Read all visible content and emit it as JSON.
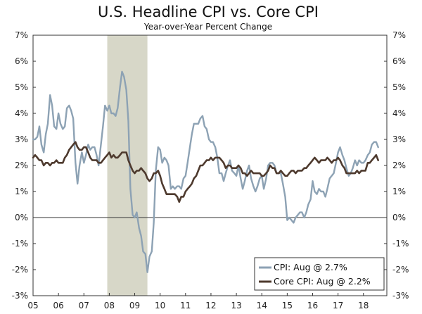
{
  "chart_data": {
    "type": "line",
    "title": "U.S. Headline CPI vs. Core CPI",
    "subtitle": "Year-over-Year Percent Change",
    "xlabel": "",
    "ylabel": "",
    "xlim": [
      2005.0,
      2018.92
    ],
    "ylim": [
      -3,
      7
    ],
    "y_ticks": [
      -3,
      -2,
      -1,
      0,
      1,
      2,
      3,
      4,
      5,
      6,
      7
    ],
    "y_tick_labels": [
      "-3%",
      "-2%",
      "-1%",
      "0%",
      "1%",
      "2%",
      "3%",
      "4%",
      "5%",
      "6%",
      "7%"
    ],
    "x_ticks": [
      2005,
      2006,
      2007,
      2008,
      2009,
      2010,
      2011,
      2012,
      2013,
      2014,
      2015,
      2016,
      2017,
      2018
    ],
    "x_tick_labels": [
      "05",
      "06",
      "07",
      "08",
      "09",
      "10",
      "11",
      "12",
      "13",
      "14",
      "15",
      "16",
      "17",
      "18"
    ],
    "recession": {
      "start": 2007.92,
      "end": 2009.5,
      "color": "#d7d7c8"
    },
    "legend_position": "bottom-right",
    "series": [
      {
        "name": "CPI: Aug @ 2.7%",
        "color": "#8da2b4",
        "x": [
          2005.0,
          2005.08,
          2005.17,
          2005.25,
          2005.33,
          2005.42,
          2005.5,
          2005.58,
          2005.67,
          2005.75,
          2005.83,
          2005.92,
          2006.0,
          2006.08,
          2006.17,
          2006.25,
          2006.33,
          2006.42,
          2006.5,
          2006.58,
          2006.67,
          2006.75,
          2006.83,
          2006.92,
          2007.0,
          2007.08,
          2007.17,
          2007.25,
          2007.33,
          2007.42,
          2007.5,
          2007.58,
          2007.67,
          2007.75,
          2007.83,
          2007.92,
          2008.0,
          2008.08,
          2008.17,
          2008.25,
          2008.33,
          2008.42,
          2008.5,
          2008.58,
          2008.67,
          2008.75,
          2008.83,
          2008.92,
          2009.0,
          2009.08,
          2009.17,
          2009.25,
          2009.33,
          2009.42,
          2009.5,
          2009.58,
          2009.67,
          2009.75,
          2009.83,
          2009.92,
          2010.0,
          2010.08,
          2010.17,
          2010.25,
          2010.33,
          2010.42,
          2010.5,
          2010.58,
          2010.67,
          2010.75,
          2010.83,
          2010.92,
          2011.0,
          2011.08,
          2011.17,
          2011.25,
          2011.33,
          2011.42,
          2011.5,
          2011.58,
          2011.67,
          2011.75,
          2011.83,
          2011.92,
          2012.0,
          2012.08,
          2012.17,
          2012.25,
          2012.33,
          2012.42,
          2012.5,
          2012.58,
          2012.67,
          2012.75,
          2012.83,
          2012.92,
          2013.0,
          2013.08,
          2013.17,
          2013.25,
          2013.33,
          2013.42,
          2013.5,
          2013.58,
          2013.67,
          2013.75,
          2013.83,
          2013.92,
          2014.0,
          2014.08,
          2014.17,
          2014.25,
          2014.33,
          2014.42,
          2014.5,
          2014.58,
          2014.67,
          2014.75,
          2014.83,
          2014.92,
          2015.0,
          2015.08,
          2015.17,
          2015.25,
          2015.33,
          2015.42,
          2015.5,
          2015.58,
          2015.67,
          2015.75,
          2015.83,
          2015.92,
          2016.0,
          2016.08,
          2016.17,
          2016.25,
          2016.33,
          2016.42,
          2016.5,
          2016.58,
          2016.67,
          2016.75,
          2016.83,
          2016.92,
          2017.0,
          2017.08,
          2017.17,
          2017.25,
          2017.33,
          2017.42,
          2017.5,
          2017.58,
          2017.67,
          2017.75,
          2017.83,
          2017.92,
          2018.0,
          2018.08,
          2018.17,
          2018.25,
          2018.33,
          2018.42,
          2018.5,
          2018.58
        ],
        "y": [
          3.0,
          3.0,
          3.1,
          3.5,
          2.8,
          2.5,
          3.2,
          3.6,
          4.7,
          4.3,
          3.5,
          3.4,
          4.0,
          3.6,
          3.4,
          3.5,
          4.2,
          4.3,
          4.1,
          3.8,
          2.1,
          1.3,
          2.0,
          2.5,
          2.1,
          2.4,
          2.8,
          2.6,
          2.7,
          2.7,
          2.4,
          2.0,
          2.8,
          3.5,
          4.3,
          4.1,
          4.3,
          4.0,
          4.0,
          3.9,
          4.2,
          5.0,
          5.6,
          5.4,
          4.9,
          3.7,
          1.1,
          0.1,
          0.0,
          0.2,
          -0.4,
          -0.7,
          -1.3,
          -1.4,
          -2.1,
          -1.5,
          -1.3,
          -0.2,
          1.8,
          2.7,
          2.6,
          2.1,
          2.3,
          2.2,
          2.0,
          1.1,
          1.2,
          1.1,
          1.2,
          1.2,
          1.1,
          1.5,
          1.6,
          2.1,
          2.7,
          3.2,
          3.6,
          3.6,
          3.6,
          3.8,
          3.9,
          3.5,
          3.4,
          3.0,
          2.9,
          2.9,
          2.7,
          2.3,
          1.7,
          1.7,
          1.4,
          1.7,
          2.0,
          2.2,
          1.8,
          1.7,
          1.6,
          2.0,
          1.5,
          1.1,
          1.4,
          1.8,
          2.0,
          1.5,
          1.2,
          1.0,
          1.2,
          1.5,
          1.6,
          1.1,
          1.5,
          2.0,
          2.1,
          2.1,
          2.0,
          1.7,
          1.7,
          1.7,
          1.3,
          0.8,
          -0.1,
          0.0,
          -0.1,
          -0.2,
          0.0,
          0.1,
          0.2,
          0.2,
          0.0,
          0.2,
          0.5,
          0.7,
          1.4,
          1.0,
          0.9,
          1.1,
          1.0,
          1.0,
          0.8,
          1.1,
          1.5,
          1.6,
          1.7,
          2.1,
          2.5,
          2.7,
          2.4,
          2.2,
          1.9,
          1.6,
          1.7,
          1.9,
          2.2,
          2.0,
          2.2,
          2.1,
          2.1,
          2.2,
          2.4,
          2.5,
          2.8,
          2.9,
          2.9,
          2.7
        ]
      },
      {
        "name": "Core CPI: Aug @ 2.2%",
        "color": "#4e3a2e",
        "x": [
          2005.0,
          2005.08,
          2005.17,
          2005.25,
          2005.33,
          2005.42,
          2005.5,
          2005.58,
          2005.67,
          2005.75,
          2005.83,
          2005.92,
          2006.0,
          2006.08,
          2006.17,
          2006.25,
          2006.33,
          2006.42,
          2006.5,
          2006.58,
          2006.67,
          2006.75,
          2006.83,
          2006.92,
          2007.0,
          2007.08,
          2007.17,
          2007.25,
          2007.33,
          2007.42,
          2007.5,
          2007.58,
          2007.67,
          2007.75,
          2007.83,
          2007.92,
          2008.0,
          2008.08,
          2008.17,
          2008.25,
          2008.33,
          2008.42,
          2008.5,
          2008.58,
          2008.67,
          2008.75,
          2008.83,
          2008.92,
          2009.0,
          2009.08,
          2009.17,
          2009.25,
          2009.33,
          2009.42,
          2009.5,
          2009.58,
          2009.67,
          2009.75,
          2009.83,
          2009.92,
          2010.0,
          2010.08,
          2010.17,
          2010.25,
          2010.33,
          2010.42,
          2010.5,
          2010.58,
          2010.67,
          2010.75,
          2010.83,
          2010.92,
          2011.0,
          2011.08,
          2011.17,
          2011.25,
          2011.33,
          2011.42,
          2011.5,
          2011.58,
          2011.67,
          2011.75,
          2011.83,
          2011.92,
          2012.0,
          2012.08,
          2012.17,
          2012.25,
          2012.33,
          2012.42,
          2012.5,
          2012.58,
          2012.67,
          2012.75,
          2012.83,
          2012.92,
          2013.0,
          2013.08,
          2013.17,
          2013.25,
          2013.33,
          2013.42,
          2013.5,
          2013.58,
          2013.67,
          2013.75,
          2013.83,
          2013.92,
          2014.0,
          2014.08,
          2014.17,
          2014.25,
          2014.33,
          2014.42,
          2014.5,
          2014.58,
          2014.67,
          2014.75,
          2014.83,
          2014.92,
          2015.0,
          2015.08,
          2015.17,
          2015.25,
          2015.33,
          2015.42,
          2015.5,
          2015.58,
          2015.67,
          2015.75,
          2015.83,
          2015.92,
          2016.0,
          2016.08,
          2016.17,
          2016.25,
          2016.33,
          2016.42,
          2016.5,
          2016.58,
          2016.67,
          2016.75,
          2016.83,
          2016.92,
          2017.0,
          2017.08,
          2017.17,
          2017.25,
          2017.33,
          2017.42,
          2017.5,
          2017.58,
          2017.67,
          2017.75,
          2017.83,
          2017.92,
          2018.0,
          2018.08,
          2018.17,
          2018.25,
          2018.33,
          2018.42,
          2018.5,
          2018.58
        ],
        "y": [
          2.3,
          2.4,
          2.3,
          2.2,
          2.2,
          2.0,
          2.1,
          2.1,
          2.0,
          2.1,
          2.1,
          2.2,
          2.1,
          2.1,
          2.1,
          2.3,
          2.4,
          2.6,
          2.7,
          2.8,
          2.9,
          2.7,
          2.6,
          2.6,
          2.7,
          2.7,
          2.5,
          2.3,
          2.2,
          2.2,
          2.2,
          2.1,
          2.1,
          2.2,
          2.3,
          2.4,
          2.5,
          2.3,
          2.4,
          2.3,
          2.3,
          2.4,
          2.5,
          2.5,
          2.5,
          2.2,
          2.0,
          1.8,
          1.7,
          1.8,
          1.8,
          1.9,
          1.8,
          1.7,
          1.5,
          1.4,
          1.5,
          1.7,
          1.7,
          1.8,
          1.6,
          1.3,
          1.1,
          0.9,
          0.9,
          0.9,
          0.9,
          0.9,
          0.8,
          0.6,
          0.8,
          0.8,
          1.0,
          1.1,
          1.2,
          1.3,
          1.5,
          1.6,
          1.8,
          2.0,
          2.0,
          2.1,
          2.2,
          2.2,
          2.3,
          2.2,
          2.3,
          2.3,
          2.3,
          2.2,
          2.1,
          1.9,
          2.0,
          2.0,
          1.9,
          1.9,
          1.9,
          2.0,
          1.9,
          1.7,
          1.7,
          1.6,
          1.7,
          1.8,
          1.7,
          1.7,
          1.7,
          1.7,
          1.6,
          1.6,
          1.7,
          1.8,
          2.0,
          1.9,
          1.9,
          1.7,
          1.7,
          1.8,
          1.7,
          1.6,
          1.6,
          1.7,
          1.8,
          1.8,
          1.7,
          1.8,
          1.8,
          1.8,
          1.9,
          1.9,
          2.0,
          2.1,
          2.2,
          2.3,
          2.2,
          2.1,
          2.2,
          2.2,
          2.2,
          2.3,
          2.2,
          2.1,
          2.2,
          2.2,
          2.3,
          2.2,
          2.0,
          1.9,
          1.7,
          1.7,
          1.7,
          1.7,
          1.7,
          1.8,
          1.7,
          1.8,
          1.8,
          1.8,
          2.1,
          2.1,
          2.2,
          2.3,
          2.4,
          2.2
        ]
      }
    ]
  }
}
